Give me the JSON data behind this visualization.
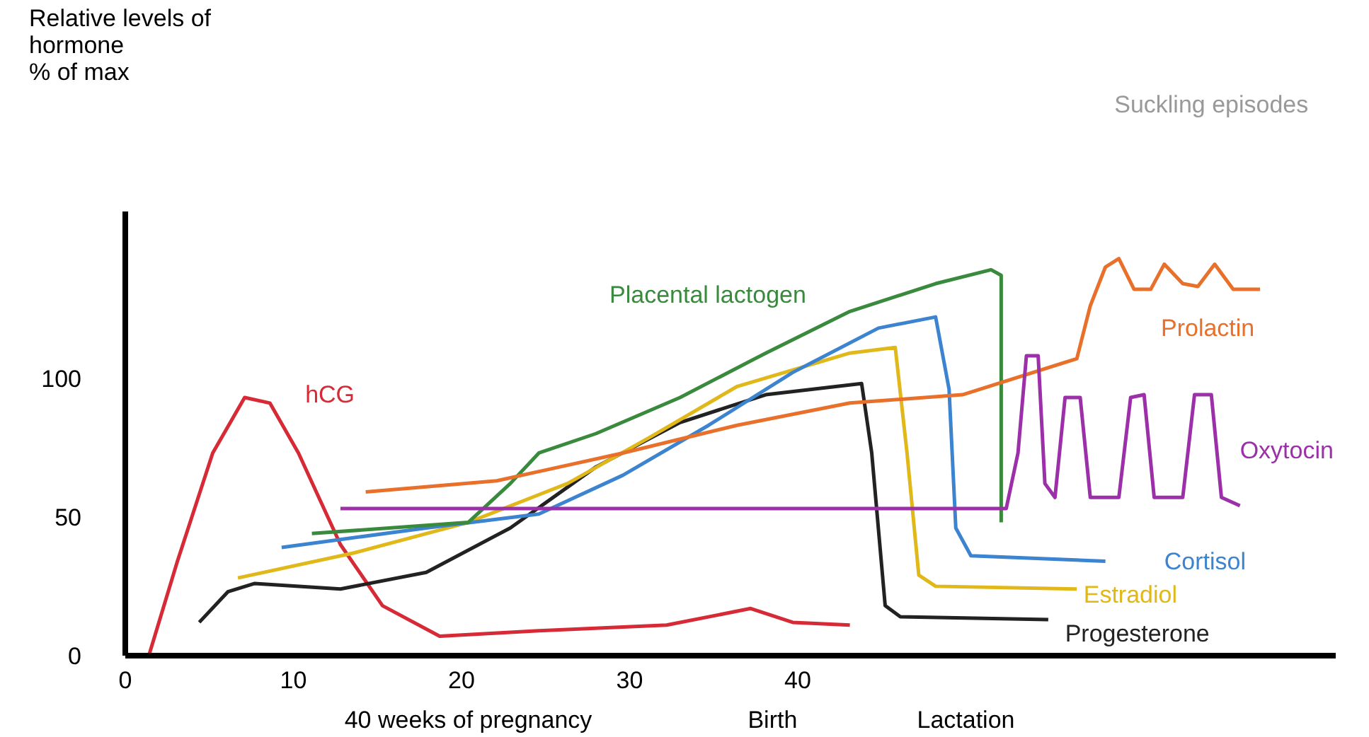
{
  "chart_data": {
    "type": "line",
    "xlabel": "40 weeks of pregnancy",
    "xlim": [
      0,
      72
    ],
    "ylim": [
      0,
      160
    ],
    "xticks": [
      0,
      10,
      20,
      30,
      40
    ],
    "yticks": [
      0,
      50,
      100
    ],
    "grid": false,
    "marker": "none",
    "line_style": "solid",
    "series": [
      {
        "name": "hCG",
        "color": "#d62b36",
        "x": [
          1.4,
          3.1,
          5.2,
          7.1,
          8.6,
          10.3,
          12.8,
          15.3,
          18.7,
          24.6,
          32.2,
          37.2,
          39.7,
          43.1
        ],
        "values": [
          0,
          34,
          73,
          93,
          91,
          73,
          40,
          18,
          7,
          9,
          11,
          17,
          12,
          11
        ]
      },
      {
        "name": "Progesterone",
        "color": "#222222",
        "x": [
          4.4,
          6.1,
          7.7,
          12.8,
          17.9,
          22.9,
          28,
          33,
          38.1,
          43.8,
          44.4,
          45.2,
          46.1,
          54.9
        ],
        "values": [
          12,
          23,
          26,
          24,
          30,
          46,
          68,
          84,
          94,
          98,
          73,
          18,
          14,
          13
        ]
      },
      {
        "name": "Estradiol",
        "color": "#e0b81a",
        "x": [
          6.7,
          13.6,
          20.4,
          26.3,
          31.3,
          36.4,
          43.1,
          45.8,
          46.5,
          47.2,
          48.2,
          56.6
        ],
        "values": [
          28,
          37,
          48,
          62,
          79,
          97,
          109,
          111,
          73,
          29,
          25,
          24
        ]
      },
      {
        "name": "Cortisol",
        "color": "#3c84d0",
        "x": [
          9.3,
          17.9,
          24.6,
          29.6,
          34.7,
          39.7,
          44.8,
          48.2,
          49,
          49.4,
          50.3,
          58.3
        ],
        "values": [
          39,
          46,
          51,
          65,
          83,
          102,
          118,
          122,
          96,
          46,
          36,
          34
        ]
      },
      {
        "name": "Placental lactogen",
        "color": "#3a8a3e",
        "x": [
          11.1,
          20.4,
          22.9,
          24.6,
          28,
          33,
          38.1,
          43.1,
          48.2,
          51.5,
          52.1,
          52.1
        ],
        "values": [
          44,
          48,
          62,
          73,
          80,
          93,
          109,
          124,
          134,
          139,
          137,
          48
        ]
      },
      {
        "name": "Prolactin",
        "color": "#e8702a",
        "x": [
          14.3,
          22.1,
          29.6,
          36.4,
          43.1,
          49.8,
          56.6,
          57.4,
          58.3,
          59.1,
          60,
          61,
          61.8,
          62.9,
          63.8,
          64.8,
          65.9,
          67.5
        ],
        "values": [
          59,
          63,
          73,
          83,
          91,
          94,
          107,
          126,
          140,
          143,
          132,
          132,
          141,
          134,
          133,
          141,
          132,
          132
        ]
      },
      {
        "name": "Oxytocin",
        "color": "#9b30a8",
        "x": [
          12.8,
          52.4,
          53.1,
          53.6,
          54.3,
          54.7,
          55.3,
          55.9,
          56.8,
          57.4,
          59.1,
          59.8,
          60.6,
          61.2,
          62.9,
          63.6,
          64.6,
          65.2,
          66.3
        ],
        "values": [
          53,
          53,
          73,
          108,
          108,
          62,
          57,
          93,
          93,
          57,
          57,
          93,
          94,
          57,
          57,
          94,
          94,
          57,
          54
        ]
      }
    ],
    "annotations": [
      "Relative levels of\nhormone\n% of max",
      "Birth",
      "Lactation",
      "Suckling episodes"
    ]
  }
}
